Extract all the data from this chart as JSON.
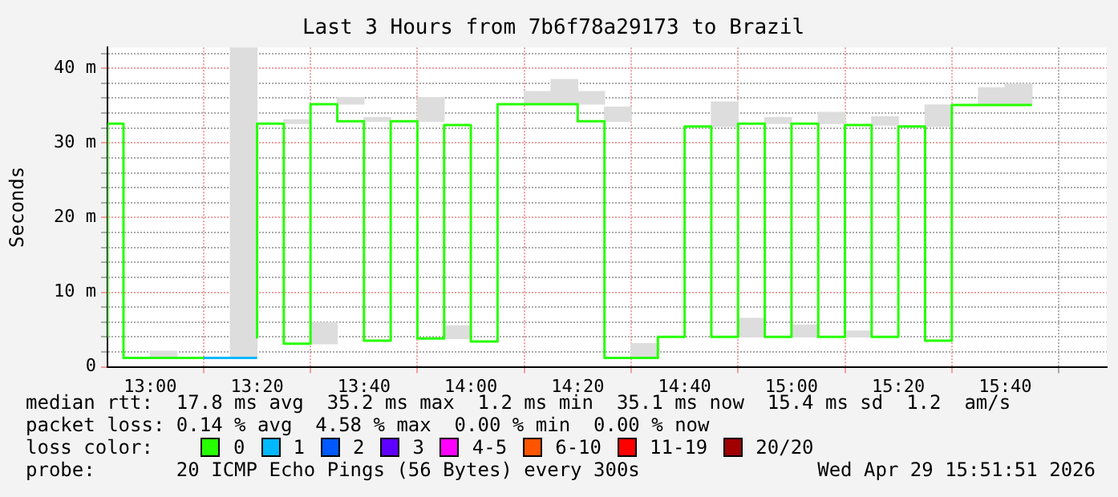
{
  "chart_data": {
    "type": "step",
    "title": "Last 3 Hours from 7b6f78a29173 to Brazil",
    "ylabel": "Seconds",
    "xlim": [
      12.8667,
      15.9833
    ],
    "xticks": [
      {
        "value": 13,
        "label": "13:00"
      },
      {
        "value": 13.3333,
        "label": "13:20"
      },
      {
        "value": 13.6667,
        "label": "13:40"
      },
      {
        "value": 14,
        "label": "14:00"
      },
      {
        "value": 14.3333,
        "label": "14:20"
      },
      {
        "value": 14.6667,
        "label": "14:40"
      },
      {
        "value": 15,
        "label": "15:00"
      },
      {
        "value": 15.3333,
        "label": "15:20"
      },
      {
        "value": 15.6667,
        "label": "15:40"
      }
    ],
    "ylim": [
      0,
      42.8
    ],
    "yticks": [
      {
        "value": 0,
        "label": "0"
      },
      {
        "value": 2,
        "label": null
      },
      {
        "value": 4,
        "label": null
      },
      {
        "value": 6,
        "label": null
      },
      {
        "value": 8,
        "label": null
      },
      {
        "value": 10,
        "label": "10 m"
      },
      {
        "value": 12,
        "label": null
      },
      {
        "value": 14,
        "label": null
      },
      {
        "value": 16,
        "label": null
      },
      {
        "value": 18,
        "label": null
      },
      {
        "value": 20,
        "label": "20 m"
      },
      {
        "value": 22,
        "label": null
      },
      {
        "value": 24,
        "label": null
      },
      {
        "value": 26,
        "label": null
      },
      {
        "value": 28,
        "label": null
      },
      {
        "value": 30,
        "label": "30 m"
      },
      {
        "value": 32,
        "label": null
      },
      {
        "value": 34,
        "label": null
      },
      {
        "value": 36,
        "label": null
      },
      {
        "value": 38,
        "label": null
      },
      {
        "value": 40,
        "label": "40 m"
      },
      {
        "value": 42,
        "label": null
      }
    ],
    "grid": true,
    "marker": "none",
    "legend": "bottom",
    "legend_title": "loss color:",
    "series": [
      {
        "type": "bar",
        "color": "#dddddd",
        "x": [
          13.0417,
          13.2917,
          13.4583,
          13.5417,
          13.625,
          13.7083,
          13.875,
          13.9583,
          14.2083,
          14.2917,
          14.375,
          14.4583,
          14.5417,
          14.7917,
          14.875,
          14.9583,
          15.0417,
          15.125,
          15.2083,
          15.2917,
          15.4583,
          15.625,
          15.7083
        ],
        "base": [
          1.2,
          1.2,
          32.6,
          3.1,
          35.2,
          32.9,
          32.9,
          3.8,
          35.2,
          35.2,
          35.2,
          32.9,
          1.2,
          32.2,
          4.0,
          32.6,
          4.0,
          32.6,
          4.0,
          32.4,
          32.2,
          35.1,
          35.1
        ],
        "values": [
          0.9,
          41.6,
          0.5,
          2.8,
          0.9,
          0.5,
          3.2,
          1.7,
          1.7,
          3.3,
          1.7,
          1.9,
          1.9,
          3.3,
          2.5,
          0.8,
          1.6,
          1.5,
          0.8,
          1.1,
          2.9,
          2.3,
          2.8
        ]
      },
      {
        "name": "0",
        "color": "#26ff00",
        "x": [
          12.8667,
          12.9167,
          13,
          13.0833,
          13.1667,
          13.25,
          13.3333,
          13.4167,
          13.5,
          13.5833,
          13.6667,
          13.75,
          13.8333,
          13.9167,
          14,
          14.0833,
          14.1667,
          14.25,
          14.3333,
          14.4167,
          14.5,
          14.5833,
          14.6667,
          14.75,
          14.8333,
          14.9167,
          15,
          15.0833,
          15.1667,
          15.25,
          15.3333,
          15.4167,
          15.5,
          15.5833,
          15.6667,
          15.75
        ],
        "values": [
          3.9,
          32.6,
          1.2,
          1.2,
          1.2,
          null,
          3.8,
          32.6,
          3.1,
          35.2,
          32.9,
          3.5,
          32.9,
          3.8,
          32.4,
          3.4,
          35.2,
          35.2,
          35.2,
          32.9,
          1.2,
          1.2,
          4.0,
          32.2,
          4.0,
          32.6,
          4.0,
          32.6,
          4.0,
          32.4,
          4.0,
          32.2,
          3.5,
          35.1,
          35.1,
          35.1
        ]
      },
      {
        "name": "1",
        "color": "#00b8ff",
        "x": [
          13.1667,
          13.25,
          13.3333
        ],
        "values": [
          1.2,
          1.2,
          1.2
        ]
      },
      {
        "name": "2",
        "color": "#0059ff"
      },
      {
        "name": "3",
        "color": "#5e00ff"
      },
      {
        "name": "4-5",
        "color": "#ff00ff"
      },
      {
        "name": "6-10",
        "color": "#ff5500"
      },
      {
        "name": "11-19",
        "color": "#ff0000"
      },
      {
        "name": "20/20",
        "color": "#a10000"
      }
    ],
    "annotations": [
      "median rtt:  17.8 ms avg  35.2 ms max  1.2 ms min  35.1 ms now  15.4 ms sd  1.2  am/s",
      "packet loss: 0.14 % avg  4.58 % max  0.00 % min  0.00 % now",
      "probe:       20 ICMP Echo Pings (56 Bytes) every 300s",
      "Wed Apr 29 15:51:51 2026"
    ]
  }
}
